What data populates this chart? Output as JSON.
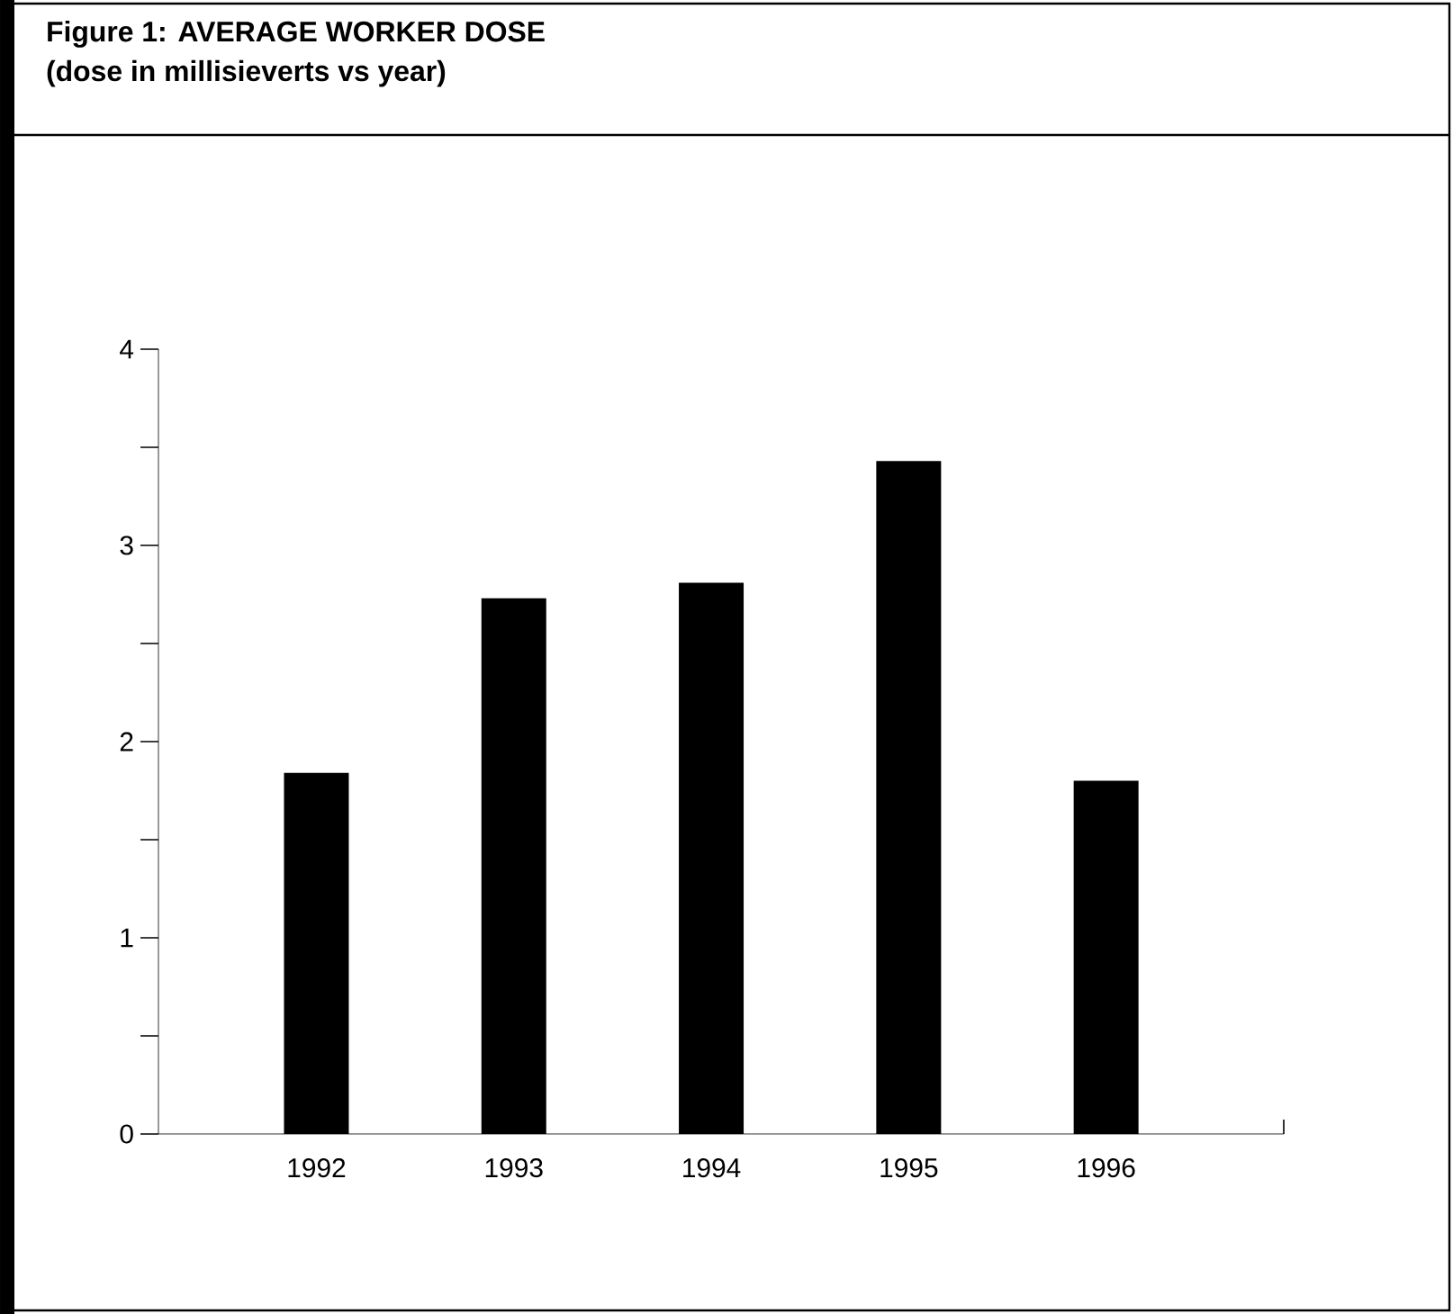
{
  "chart_data": {
    "type": "bar",
    "title": "Figure 1: AVERAGE WORKER DOSE",
    "subtitle": "(dose in millisieverts vs year)",
    "categories": [
      "1992",
      "1993",
      "1994",
      "1995",
      "1996"
    ],
    "values": [
      1.84,
      2.73,
      2.81,
      3.43,
      1.8
    ],
    "color": "#000000",
    "ylim": [
      0,
      4
    ],
    "yticks": [
      0,
      {
        "value": 0.5,
        "label": null
      },
      1,
      {
        "value": 1.5,
        "label": null
      },
      2,
      {
        "value": 2.5,
        "label": null
      },
      3,
      {
        "value": 3.5,
        "label": null
      },
      4
    ],
    "grid": false
  }
}
